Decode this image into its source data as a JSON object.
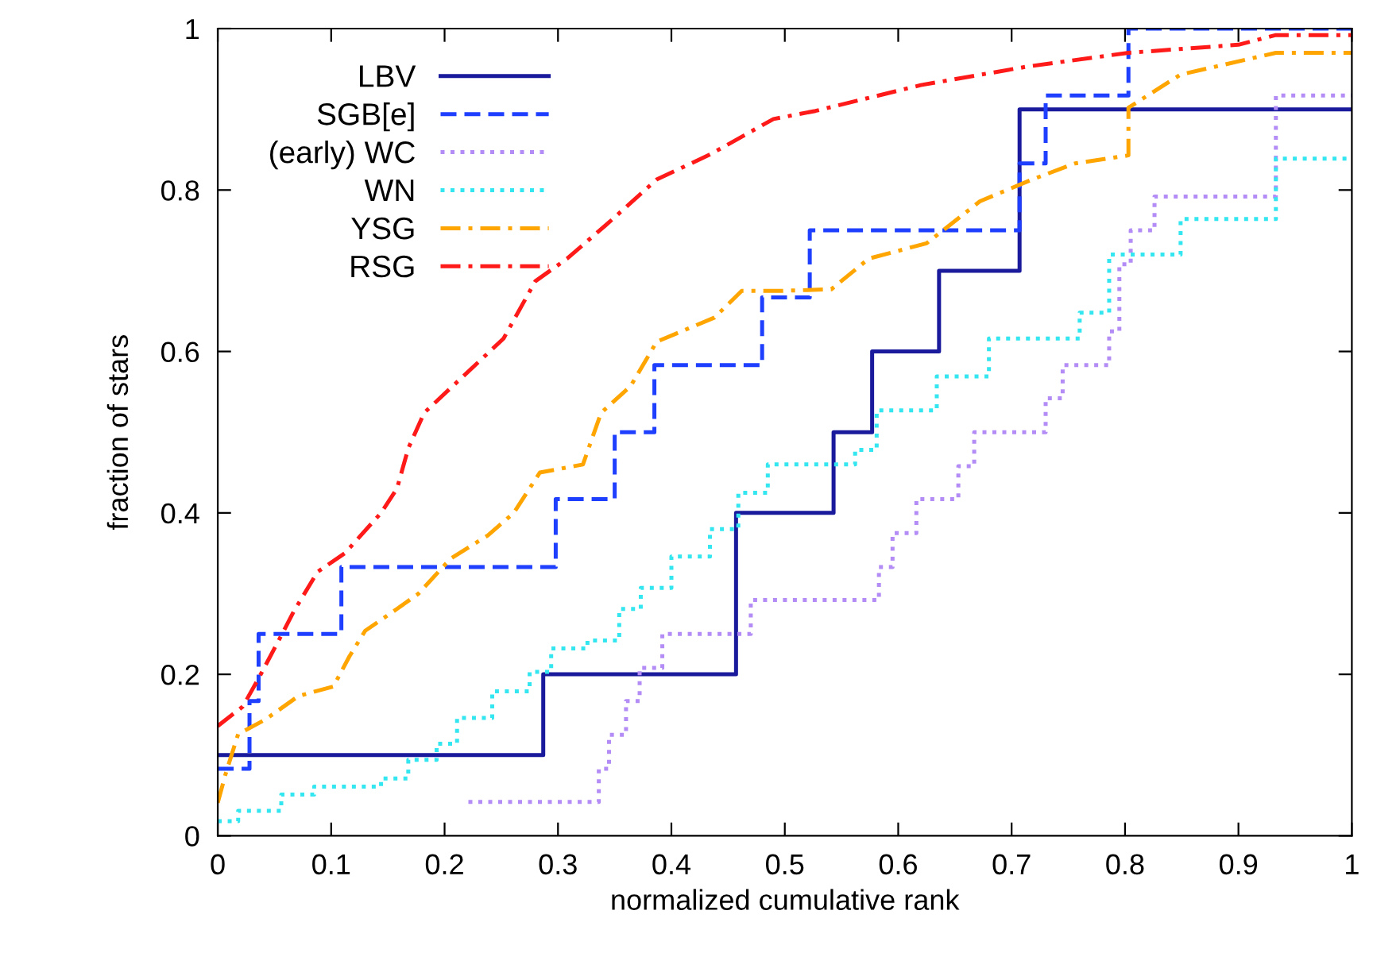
{
  "chart_data": {
    "type": "step",
    "xlabel": "normalized cumulative rank",
    "ylabel": "fraction of stars",
    "xlim": [
      0,
      1
    ],
    "ylim": [
      0,
      1
    ],
    "xticks": [
      0,
      {
        "value": 0.1,
        "label": "0.1"
      },
      {
        "value": 0.2,
        "label": "0.2"
      },
      {
        "value": 0.3,
        "label": "0.3"
      },
      {
        "value": 0.4,
        "label": "0.4"
      },
      {
        "value": 0.5,
        "label": "0.5"
      },
      {
        "value": 0.6,
        "label": "0.6"
      },
      {
        "value": 0.7,
        "label": "0.7"
      },
      {
        "value": 0.8,
        "label": "0.8"
      },
      {
        "value": 0.9,
        "label": "0.9"
      },
      1
    ],
    "yticks": [
      0,
      {
        "value": 0.2,
        "label": "0.2"
      },
      {
        "value": 0.4,
        "label": "0.4"
      },
      {
        "value": 0.6,
        "label": "0.6"
      },
      {
        "value": 0.8,
        "label": "0.8"
      },
      1
    ],
    "grid": false,
    "legend": "top left",
    "marker": "none",
    "series": [
      {
        "name": "LBV",
        "color": "#1a1a9c",
        "line_style": "solid",
        "x": [
          0,
          0.287,
          0.457,
          0.543,
          0.577,
          0.636,
          0.707,
          1.0
        ],
        "values": [
          0.1,
          0.2,
          0.4,
          0.5,
          0.6,
          0.7,
          0.9,
          0.9
        ]
      },
      {
        "name": "SGB[e]",
        "color": "#1f3fff",
        "line_style": "dashed",
        "x": [
          0,
          0.028,
          0.036,
          0.109,
          0.298,
          0.35,
          0.385,
          0.48,
          0.522,
          0.707,
          0.73,
          0.803,
          1.0
        ],
        "values": [
          0.083,
          0.167,
          0.25,
          0.333,
          0.417,
          0.5,
          0.583,
          0.667,
          0.75,
          0.833,
          0.917,
          1.0,
          1.0
        ]
      },
      {
        "name": "(early) WC",
        "color": "#b38cf5",
        "line_style": "dotted",
        "x": [
          0.221,
          0.336,
          0.345,
          0.36,
          0.372,
          0.392,
          0.47,
          0.583,
          0.595,
          0.616,
          0.653,
          0.667,
          0.73,
          0.745,
          0.786,
          0.795,
          0.805,
          0.826,
          0.933,
          1.0
        ],
        "values": [
          0.042,
          0.083,
          0.125,
          0.167,
          0.208,
          0.25,
          0.292,
          0.333,
          0.375,
          0.417,
          0.458,
          0.5,
          0.542,
          0.583,
          0.625,
          0.708,
          0.75,
          0.792,
          0.917,
          0.917
        ]
      },
      {
        "name": "WN",
        "color": "#33e6f0",
        "line_style": "dotted",
        "x": [
          0,
          0.018,
          0.056,
          0.085,
          0.144,
          0.168,
          0.193,
          0.211,
          0.242,
          0.275,
          0.294,
          0.326,
          0.354,
          0.373,
          0.4,
          0.434,
          0.459,
          0.485,
          0.562,
          0.581,
          0.634,
          0.68,
          0.737,
          0.76,
          0.786,
          0.849,
          0.933,
          1.0
        ],
        "values": [
          0.018,
          0.031,
          0.051,
          0.061,
          0.071,
          0.094,
          0.114,
          0.146,
          0.179,
          0.203,
          0.232,
          0.242,
          0.281,
          0.307,
          0.346,
          0.38,
          0.425,
          0.46,
          0.478,
          0.527,
          0.569,
          0.616,
          0.616,
          0.648,
          0.72,
          0.764,
          0.839,
          0.839
        ]
      },
      {
        "name": "YSG",
        "type": "line",
        "color": "#ffa500",
        "line_style": "dashdot",
        "x": [
          0,
          0.007,
          0.018,
          0.042,
          0.071,
          0.102,
          0.116,
          0.13,
          0.158,
          0.177,
          0.205,
          0.238,
          0.261,
          0.284,
          0.322,
          0.338,
          0.364,
          0.387,
          0.438,
          0.462,
          0.494,
          0.541,
          0.574,
          0.625,
          0.672,
          0.718,
          0.756,
          0.803,
          0.803,
          0.849,
          0.933,
          1.0
        ],
        "values": [
          0.041,
          0.077,
          0.126,
          0.144,
          0.173,
          0.185,
          0.222,
          0.254,
          0.281,
          0.3,
          0.343,
          0.372,
          0.4,
          0.45,
          0.46,
          0.524,
          0.557,
          0.612,
          0.642,
          0.675,
          0.675,
          0.677,
          0.715,
          0.734,
          0.786,
          0.813,
          0.833,
          0.843,
          0.902,
          0.943,
          0.97,
          0.97
        ]
      },
      {
        "name": "RSG",
        "type": "line",
        "color": "#ff1a1a",
        "line_style": "dashdot",
        "x": [
          0,
          0.022,
          0.036,
          0.056,
          0.067,
          0.088,
          0.112,
          0.144,
          0.158,
          0.168,
          0.182,
          0.252,
          0.28,
          0.308,
          0.345,
          0.387,
          0.434,
          0.49,
          0.527,
          0.62,
          0.714,
          0.803,
          0.9,
          0.933,
          1.0
        ],
        "values": [
          0.136,
          0.16,
          0.195,
          0.248,
          0.278,
          0.327,
          0.35,
          0.4,
          0.43,
          0.48,
          0.524,
          0.616,
          0.687,
          0.715,
          0.76,
          0.813,
          0.844,
          0.888,
          0.898,
          0.93,
          0.953,
          0.97,
          0.98,
          0.992,
          0.992
        ]
      }
    ]
  }
}
